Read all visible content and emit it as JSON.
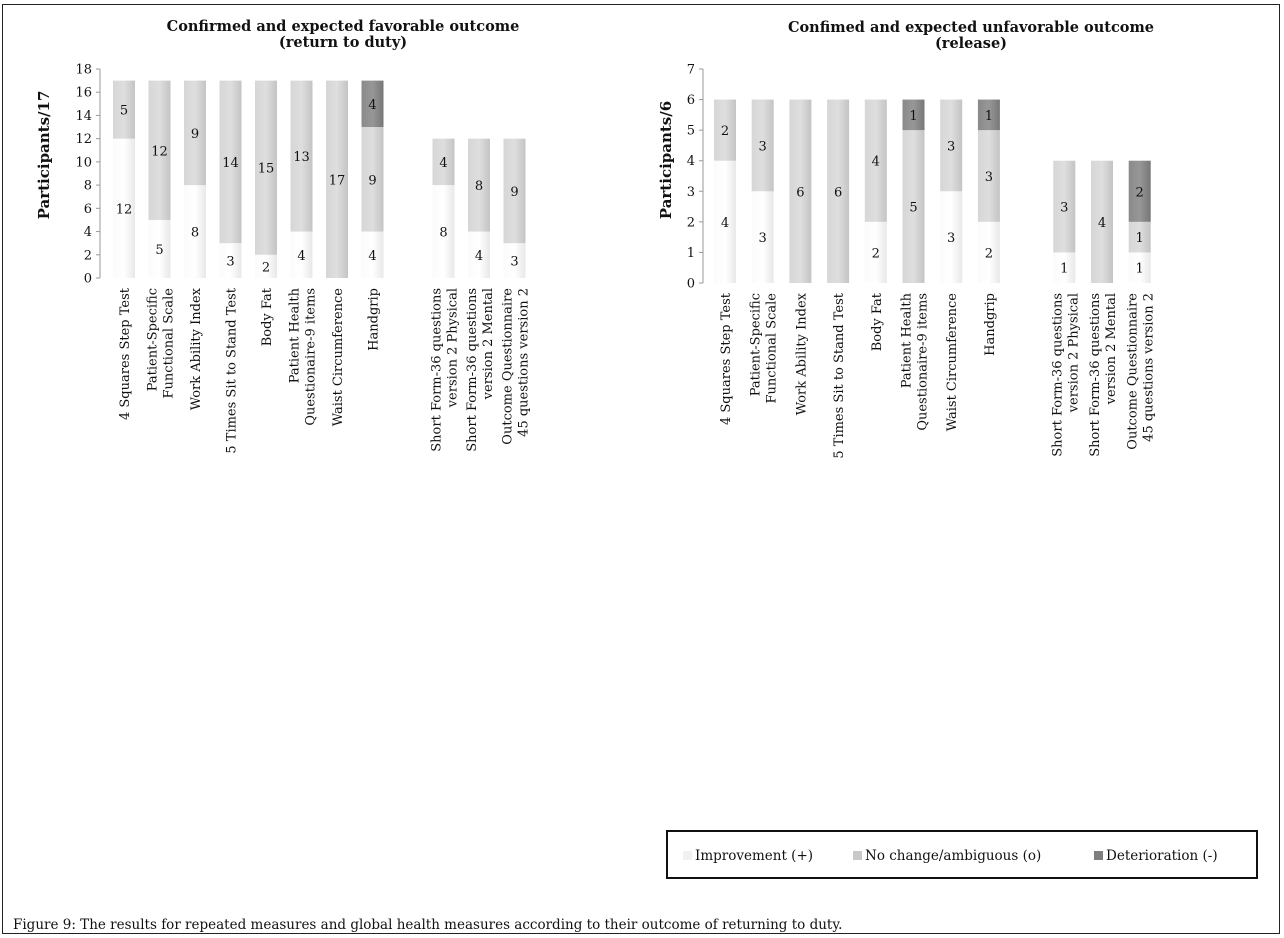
{
  "caption": "Figure 9: The results for repeated measures and global health measures according to their outcome of returning to duty.",
  "legend": [
    {
      "label": "Improvement (+)",
      "color": "#f1f1f1"
    },
    {
      "label": "No change/ambiguous (o)",
      "color": "#c8c8c8"
    },
    {
      "label": "Deterioration (-)",
      "color": "#7f7f7f"
    }
  ],
  "chart_data": [
    {
      "type": "bar",
      "stacked": true,
      "title_lines": [
        "Confirmed and expected favorable outcome",
        "(return to duty)"
      ],
      "ylabel": "Participants/17",
      "ylim": [
        0,
        18
      ],
      "yticks": [
        0,
        2,
        4,
        6,
        8,
        10,
        12,
        14,
        16,
        18
      ],
      "categories": [
        [
          "4 Squares Step Test"
        ],
        [
          "Patient-Specific",
          "Functional Scale"
        ],
        [
          "Work Ability Index"
        ],
        [
          "5 Times Sit to Stand Test"
        ],
        [
          "Body Fat"
        ],
        [
          "Patient Health",
          "Questionaire-9 items"
        ],
        [
          "Waist Circumference"
        ],
        [
          "Handgrip"
        ],
        [],
        [
          "Short Form-36 questions",
          "version 2 Physical"
        ],
        [
          "Short Form-36 questions",
          "version 2 Mental"
        ],
        [
          "Outcome Questionnaire",
          "45 questions version 2"
        ]
      ],
      "series": [
        {
          "name": "Improvement (+)",
          "values": [
            12,
            5,
            8,
            3,
            2,
            4,
            0,
            4,
            null,
            8,
            4,
            3
          ],
          "labels": [
            "12",
            "5",
            "8",
            "3",
            "2",
            "4",
            "",
            "4",
            "",
            "8",
            "4",
            "3"
          ]
        },
        {
          "name": "No change/ambiguous (o)",
          "values": [
            5,
            12,
            9,
            14,
            15,
            13,
            17,
            9,
            null,
            4,
            8,
            9
          ],
          "labels": [
            "5",
            "12",
            "9",
            "14",
            "15",
            "13",
            "17",
            "9",
            "",
            "4",
            "8",
            "9"
          ]
        },
        {
          "name": "Deterioration (-)",
          "values": [
            0,
            0,
            0,
            0,
            0,
            0,
            0,
            4,
            null,
            0,
            0,
            0
          ],
          "labels": [
            "",
            "",
            "",
            "",
            "",
            "",
            "",
            "4",
            "",
            "",
            "",
            ""
          ]
        }
      ]
    },
    {
      "type": "bar",
      "stacked": true,
      "title_lines": [
        "Confimed and expected unfavorable outcome",
        "(release)"
      ],
      "ylabel": "Participants/6",
      "ylim": [
        0,
        7
      ],
      "yticks": [
        0,
        1,
        2,
        3,
        4,
        5,
        6,
        7
      ],
      "categories": [
        [
          "4 Squares Step Test"
        ],
        [
          "Patient-Specific",
          "Functional Scale"
        ],
        [
          "Work Ability Index"
        ],
        [
          "5 Times Sit to Stand Test"
        ],
        [
          "Body Fat"
        ],
        [
          "Patient Health",
          "Questionaire-9 items"
        ],
        [
          "Waist Circumference"
        ],
        [
          "Handgrip"
        ],
        [],
        [
          "Short Form-36 questions",
          "version 2 Physical"
        ],
        [
          "Short Form-36 questions",
          "version 2 Mental"
        ],
        [
          "Outcome Questionnaire",
          "45 questions version 2"
        ]
      ],
      "series": [
        {
          "name": "Improvement (+)",
          "values": [
            4,
            3,
            0,
            0,
            2,
            0,
            3,
            2,
            null,
            1,
            0,
            1
          ],
          "labels": [
            "4",
            "3",
            "",
            "",
            "2",
            "",
            "3",
            "2",
            "",
            "1",
            "",
            "1"
          ]
        },
        {
          "name": "No change/ambiguous (o)",
          "values": [
            2,
            3,
            6,
            6,
            4,
            5,
            3,
            3,
            null,
            3,
            4,
            1
          ],
          "labels": [
            "2",
            "3",
            "6",
            "6",
            "4",
            "5",
            "3",
            "3",
            "",
            "3",
            "4",
            "1"
          ]
        },
        {
          "name": "Deterioration (-)",
          "values": [
            0,
            0,
            0,
            0,
            0,
            1,
            0,
            1,
            null,
            0,
            0,
            2
          ],
          "labels": [
            "",
            "",
            "",
            "",
            "",
            "1",
            "",
            "1",
            "",
            "",
            "",
            "2"
          ]
        }
      ]
    }
  ]
}
